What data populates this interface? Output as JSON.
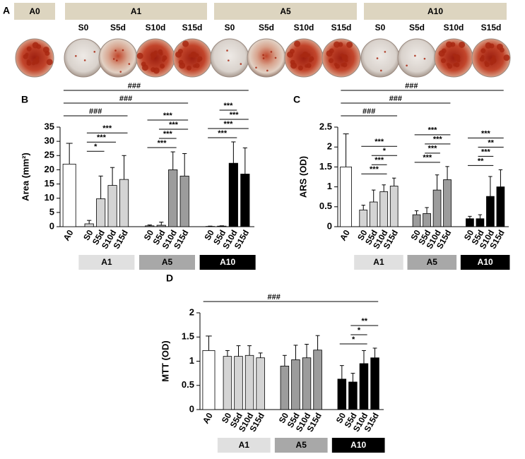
{
  "panel_a": {
    "panel": "A",
    "groups": [
      {
        "name": "A0"
      },
      {
        "name": "A1",
        "samples": [
          "S0",
          "S5d",
          "S10d",
          "S15d"
        ]
      },
      {
        "name": "A5",
        "samples": [
          "S0",
          "S5d",
          "S10d",
          "S15d"
        ]
      },
      {
        "name": "A10",
        "samples": [
          "S0",
          "S5d",
          "S10d",
          "S15d"
        ]
      }
    ]
  },
  "chart_data": [
    {
      "type": "bar",
      "panel": "B",
      "ylabel": "Area (mm²)",
      "categories": [
        "A0",
        "S0",
        "S5d",
        "S10d",
        "S15d",
        "S0",
        "S5d",
        "S10d",
        "S15d",
        "S0",
        "S5d",
        "S10d",
        "S15d"
      ],
      "values": [
        22,
        1,
        9.8,
        14.5,
        16.6,
        0.3,
        0.5,
        20,
        17.8,
        0.1,
        0.2,
        22.3,
        18.5
      ],
      "errors": [
        7.3,
        1.2,
        8,
        6.3,
        8.4,
        0.3,
        1.1,
        6.3,
        7.9,
        0.1,
        0.1,
        7.5,
        9.2
      ],
      "colors": [
        "#ffffff",
        "#d4d4d4",
        "#d4d4d4",
        "#d4d4d4",
        "#d4d4d4",
        "#9c9c9c",
        "#9c9c9c",
        "#9c9c9c",
        "#9c9c9c",
        "#000000",
        "#000000",
        "#000000",
        "#000000"
      ],
      "groups": [
        {
          "name": "A1",
          "color": "#e0e0e0"
        },
        {
          "name": "A5",
          "color": "#a8a8a8"
        },
        {
          "name": "A10",
          "color": "#000000"
        }
      ],
      "ylim": [
        0,
        35
      ],
      "yticks": [
        0,
        5,
        10,
        15,
        20,
        25,
        30,
        35
      ],
      "brackets": [
        {
          "text": "###",
          "from": 0,
          "to": 4
        },
        {
          "text": "###",
          "from": 0,
          "to": 8
        },
        {
          "text": "###",
          "from": 0,
          "to": 12
        },
        {
          "text": "*",
          "from": 1,
          "to": 2
        },
        {
          "text": "***",
          "from": 1,
          "to": 3
        },
        {
          "text": "***",
          "from": 1,
          "to": 4
        },
        {
          "text": "***",
          "from": 5,
          "to": 7
        },
        {
          "text": "***",
          "from": 6,
          "to": 7
        },
        {
          "text": "***",
          "from": 6,
          "to": 8
        },
        {
          "text": "***",
          "from": 5,
          "to": 8
        },
        {
          "text": "***",
          "from": 9,
          "to": 11
        },
        {
          "text": "***",
          "from": 9,
          "to": 12
        },
        {
          "text": "***",
          "from": 10,
          "to": 12
        },
        {
          "text": "***",
          "from": 10,
          "to": 11
        }
      ]
    },
    {
      "type": "bar",
      "panel": "C",
      "ylabel": "ARS (OD)",
      "categories": [
        "A0",
        "S0",
        "S5d",
        "S10d",
        "S15d",
        "S0",
        "S5d",
        "S10d",
        "S15d",
        "S0",
        "S5d",
        "S10d",
        "S15d"
      ],
      "values": [
        1.5,
        0.42,
        0.62,
        0.88,
        1.02,
        0.3,
        0.33,
        0.92,
        1.18,
        0.2,
        0.2,
        0.76,
        1.0
      ],
      "errors": [
        0.83,
        0.12,
        0.3,
        0.17,
        0.2,
        0.1,
        0.15,
        0.38,
        0.33,
        0.06,
        0.1,
        0.5,
        0.43
      ],
      "colors": [
        "#ffffff",
        "#d4d4d4",
        "#d4d4d4",
        "#d4d4d4",
        "#d4d4d4",
        "#9c9c9c",
        "#9c9c9c",
        "#9c9c9c",
        "#9c9c9c",
        "#000000",
        "#000000",
        "#000000",
        "#000000"
      ],
      "groups": [
        {
          "name": "A1",
          "color": "#e0e0e0"
        },
        {
          "name": "A5",
          "color": "#a8a8a8"
        },
        {
          "name": "A10",
          "color": "#000000"
        }
      ],
      "ylim": [
        0,
        2.5
      ],
      "yticks": [
        0,
        0.5,
        1,
        1.5,
        2,
        2.5
      ],
      "brackets": [
        {
          "text": "###",
          "from": 0,
          "to": 4
        },
        {
          "text": "###",
          "from": 0,
          "to": 8
        },
        {
          "text": "###",
          "from": 0,
          "to": 12
        },
        {
          "text": "***",
          "from": 1,
          "to": 3
        },
        {
          "text": "***",
          "from": 2,
          "to": 3
        },
        {
          "text": "*",
          "from": 2,
          "to": 4
        },
        {
          "text": "***",
          "from": 1,
          "to": 4
        },
        {
          "text": "***",
          "from": 5,
          "to": 7
        },
        {
          "text": "***",
          "from": 6,
          "to": 7
        },
        {
          "text": "***",
          "from": 6,
          "to": 8
        },
        {
          "text": "***",
          "from": 5,
          "to": 8
        },
        {
          "text": "**",
          "from": 9,
          "to": 11
        },
        {
          "text": "***",
          "from": 10,
          "to": 11
        },
        {
          "text": "**",
          "from": 10,
          "to": 12
        },
        {
          "text": "***",
          "from": 9,
          "to": 12
        }
      ]
    },
    {
      "type": "bar",
      "panel": "D",
      "ylabel": "MTT (OD)",
      "categories": [
        "A0",
        "S0",
        "S5d",
        "S10d",
        "S15d",
        "S0",
        "S5d",
        "S10d",
        "S15d",
        "S0",
        "S5d",
        "S10d",
        "S15d"
      ],
      "values": [
        1.22,
        1.1,
        1.1,
        1.12,
        1.07,
        0.9,
        1.03,
        1.07,
        1.23,
        0.63,
        0.57,
        0.95,
        1.07
      ],
      "errors": [
        0.3,
        0.12,
        0.22,
        0.2,
        0.1,
        0.22,
        0.3,
        0.28,
        0.3,
        0.28,
        0.18,
        0.27,
        0.2
      ],
      "colors": [
        "#ffffff",
        "#d4d4d4",
        "#d4d4d4",
        "#d4d4d4",
        "#d4d4d4",
        "#9c9c9c",
        "#9c9c9c",
        "#9c9c9c",
        "#9c9c9c",
        "#000000",
        "#000000",
        "#000000",
        "#000000"
      ],
      "groups": [
        {
          "name": "A1",
          "color": "#e0e0e0"
        },
        {
          "name": "A5",
          "color": "#a8a8a8"
        },
        {
          "name": "A10",
          "color": "#000000"
        }
      ],
      "ylim": [
        0,
        2
      ],
      "yticks": [
        0,
        0.5,
        1,
        1.5,
        2
      ],
      "brackets": [
        {
          "text": "###",
          "from": 0,
          "to": 12
        },
        {
          "text": "*",
          "from": 9,
          "to": 11
        },
        {
          "text": "*",
          "from": 10,
          "to": 11
        },
        {
          "text": "**",
          "from": 10,
          "to": 12
        }
      ]
    }
  ]
}
